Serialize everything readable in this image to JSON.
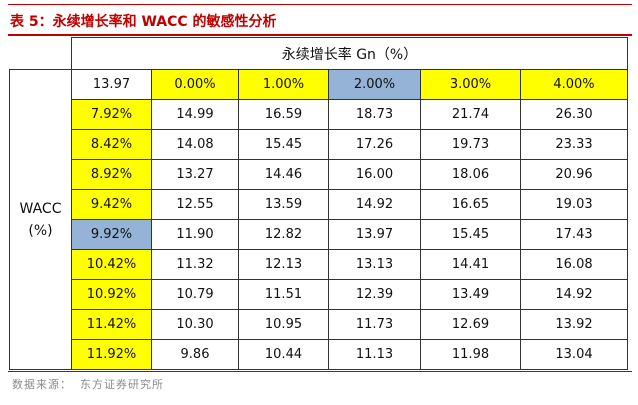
{
  "title": "表 5：永续增长率和 WACC 的敏感性分析",
  "column_header": "永续增长率 Gn（%）",
  "row_header_line1": "WACC",
  "row_header_line2": "(%)",
  "corner_value": "13.97",
  "growth_rates": [
    "0.00%",
    "1.00%",
    "2.00%",
    "3.00%",
    "4.00%"
  ],
  "rows": [
    {
      "wacc": "7.92%",
      "values": [
        "14.99",
        "16.59",
        "18.73",
        "21.74",
        "26.30"
      ]
    },
    {
      "wacc": "8.42%",
      "values": [
        "14.08",
        "15.45",
        "17.26",
        "19.73",
        "23.33"
      ]
    },
    {
      "wacc": "8.92%",
      "values": [
        "13.27",
        "14.46",
        "16.00",
        "18.06",
        "20.96"
      ]
    },
    {
      "wacc": "9.42%",
      "values": [
        "12.55",
        "13.59",
        "14.92",
        "16.65",
        "19.03"
      ]
    },
    {
      "wacc": "9.92%",
      "values": [
        "11.90",
        "12.82",
        "13.97",
        "15.45",
        "17.43"
      ]
    },
    {
      "wacc": "10.42%",
      "values": [
        "11.32",
        "12.13",
        "13.13",
        "14.41",
        "16.08"
      ]
    },
    {
      "wacc": "10.92%",
      "values": [
        "10.79",
        "11.51",
        "12.39",
        "13.49",
        "14.92"
      ]
    },
    {
      "wacc": "11.42%",
      "values": [
        "10.30",
        "10.95",
        "11.73",
        "12.69",
        "13.92"
      ]
    },
    {
      "wacc": "11.92%",
      "values": [
        "9.86",
        "10.44",
        "11.13",
        "11.98",
        "13.04"
      ]
    }
  ],
  "source_label": "数据来源：",
  "source_name": "东方证券研究所",
  "colors": {
    "accent": "#c00000",
    "highlight": "#ffff00",
    "base_case": "#95b3d7"
  }
}
